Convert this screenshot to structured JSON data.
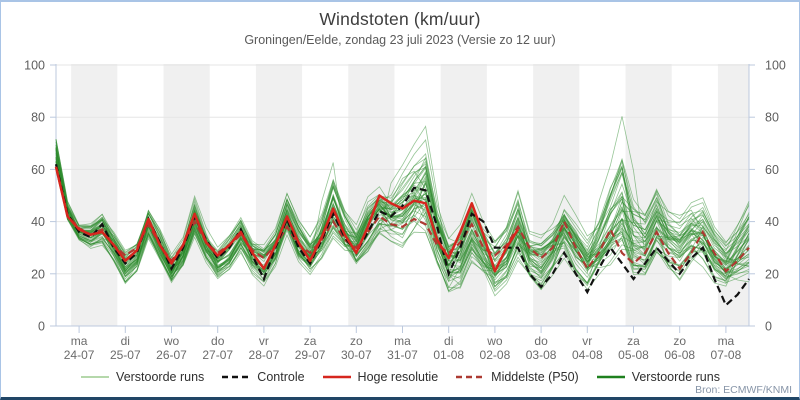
{
  "header": {
    "title": "Windstoten (km/uur)",
    "subtitle": "Groningen/Eelde, zondag 23 juli 2023 (Versie zo 12 uur)"
  },
  "source": "Bron: ECMWF/KNMI",
  "legend": [
    {
      "label": "Verstoorde runs",
      "color": "#b5d8ab",
      "width": 2,
      "dash": false
    },
    {
      "label": "Controle",
      "color": "#111111",
      "width": 2.4,
      "dash": true
    },
    {
      "label": "Hoge resolutie",
      "color": "#d6261e",
      "width": 2.6,
      "dash": false
    },
    {
      "label": "Middelste (P50)",
      "color": "#ad3a32",
      "width": 2.4,
      "dash": true
    },
    {
      "label": "Verstoorde runs",
      "color": "#1e801e",
      "width": 2.4,
      "dash": false
    }
  ],
  "chart_data": {
    "type": "line",
    "title": "Windstoten (km/uur)",
    "ylabel": "km/uur",
    "ylim": [
      0,
      100
    ],
    "yticks": [
      0,
      20,
      40,
      60,
      80,
      100
    ],
    "grid": true,
    "x_start": "2023-07-23 12:00",
    "x_step_hours": 6,
    "x_ticks": [
      {
        "day": "ma",
        "date": "24-07"
      },
      {
        "day": "di",
        "date": "25-07"
      },
      {
        "day": "wo",
        "date": "26-07"
      },
      {
        "day": "do",
        "date": "27-07"
      },
      {
        "day": "vr",
        "date": "28-07"
      },
      {
        "day": "za",
        "date": "29-07"
      },
      {
        "day": "zo",
        "date": "30-07"
      },
      {
        "day": "ma",
        "date": "31-07"
      },
      {
        "day": "di",
        "date": "01-08"
      },
      {
        "day": "wo",
        "date": "02-08"
      },
      {
        "day": "do",
        "date": "03-08"
      },
      {
        "day": "vr",
        "date": "04-08"
      },
      {
        "day": "za",
        "date": "05-08"
      },
      {
        "day": "zo",
        "date": "06-08"
      },
      {
        "day": "ma",
        "date": "07-08"
      }
    ],
    "series": {
      "controle": [
        62,
        43,
        36,
        34,
        39,
        30,
        24,
        28,
        41,
        32,
        22,
        30,
        42,
        33,
        26,
        30,
        37,
        27,
        18,
        30,
        41,
        30,
        24,
        33,
        43,
        34,
        28,
        36,
        44,
        42,
        46,
        53,
        52,
        38,
        20,
        30,
        43,
        40,
        30,
        30,
        30,
        20,
        15,
        20,
        28,
        20,
        13,
        22,
        30,
        24,
        18,
        24,
        30,
        25,
        20,
        26,
        30,
        18,
        8,
        12,
        18
      ],
      "hoge_resolutie": [
        61,
        42,
        37,
        35,
        36,
        31,
        25,
        29,
        41,
        31,
        24,
        31,
        43,
        32,
        27,
        31,
        36,
        28,
        22,
        31,
        42,
        32,
        25,
        34,
        45,
        35,
        28,
        38,
        50,
        47,
        45,
        48,
        47,
        33,
        26,
        36,
        47,
        35,
        21,
        30,
        37
      ],
      "middelste_p50": [
        61,
        42.5,
        37.5,
        35,
        37,
        31,
        27,
        30,
        39,
        31,
        25,
        31,
        40,
        32,
        28,
        31,
        35,
        29,
        26,
        31,
        38,
        31,
        28,
        33,
        40,
        33,
        30,
        36,
        42,
        39,
        38,
        41,
        39,
        31,
        28,
        32,
        39,
        30,
        27,
        31,
        38,
        30,
        26,
        30,
        40,
        30,
        22,
        28,
        37,
        28,
        24,
        28,
        36,
        28,
        22,
        28,
        36,
        28,
        21,
        25,
        30
      ],
      "ensemble_min": [
        58,
        38,
        31,
        28,
        28,
        22,
        14,
        18,
        30,
        22,
        13,
        20,
        32,
        22,
        15,
        18,
        24,
        16,
        12,
        18,
        30,
        20,
        15,
        20,
        28,
        22,
        18,
        24,
        30,
        28,
        25,
        28,
        25,
        18,
        6,
        8,
        20,
        14,
        6,
        12,
        18,
        12,
        8,
        14,
        20,
        14,
        8,
        14,
        18,
        16,
        10,
        14,
        20,
        14,
        12,
        16,
        15,
        12,
        8,
        9,
        10
      ],
      "ensemble_max": [
        74,
        50,
        41,
        42,
        48,
        40,
        32,
        36,
        49,
        40,
        30,
        36,
        52,
        40,
        33,
        38,
        46,
        38,
        36,
        42,
        55,
        44,
        38,
        48,
        63,
        50,
        42,
        52,
        58,
        55,
        62,
        70,
        77,
        50,
        40,
        44,
        55,
        44,
        38,
        42,
        58,
        42,
        42,
        46,
        55,
        46,
        40,
        48,
        62,
        81,
        60,
        50,
        62,
        52,
        48,
        55,
        58,
        45,
        40,
        48,
        57
      ]
    },
    "ensemble": {
      "count": 48,
      "seed": 7,
      "outliers": [
        {
          "member": 0,
          "steps": [
            29,
            30,
            31,
            32,
            33
          ]
        },
        {
          "member": 1,
          "steps": [
            47,
            48,
            49,
            50
          ]
        },
        {
          "member": 2,
          "steps": [
            23,
            24
          ]
        }
      ]
    },
    "styles": {
      "band_color": "#f0f0f0",
      "grid_color": "#e5e5e5",
      "axis_color": "#bcc9de",
      "tick_label_color": "#6b6b6b",
      "y_label_color": "#5e5e5e",
      "ensemble_color": "#2e8b2e",
      "controle_color": "#111111",
      "hres_color": "#d6261e",
      "p50_color": "#ad3a32"
    }
  }
}
